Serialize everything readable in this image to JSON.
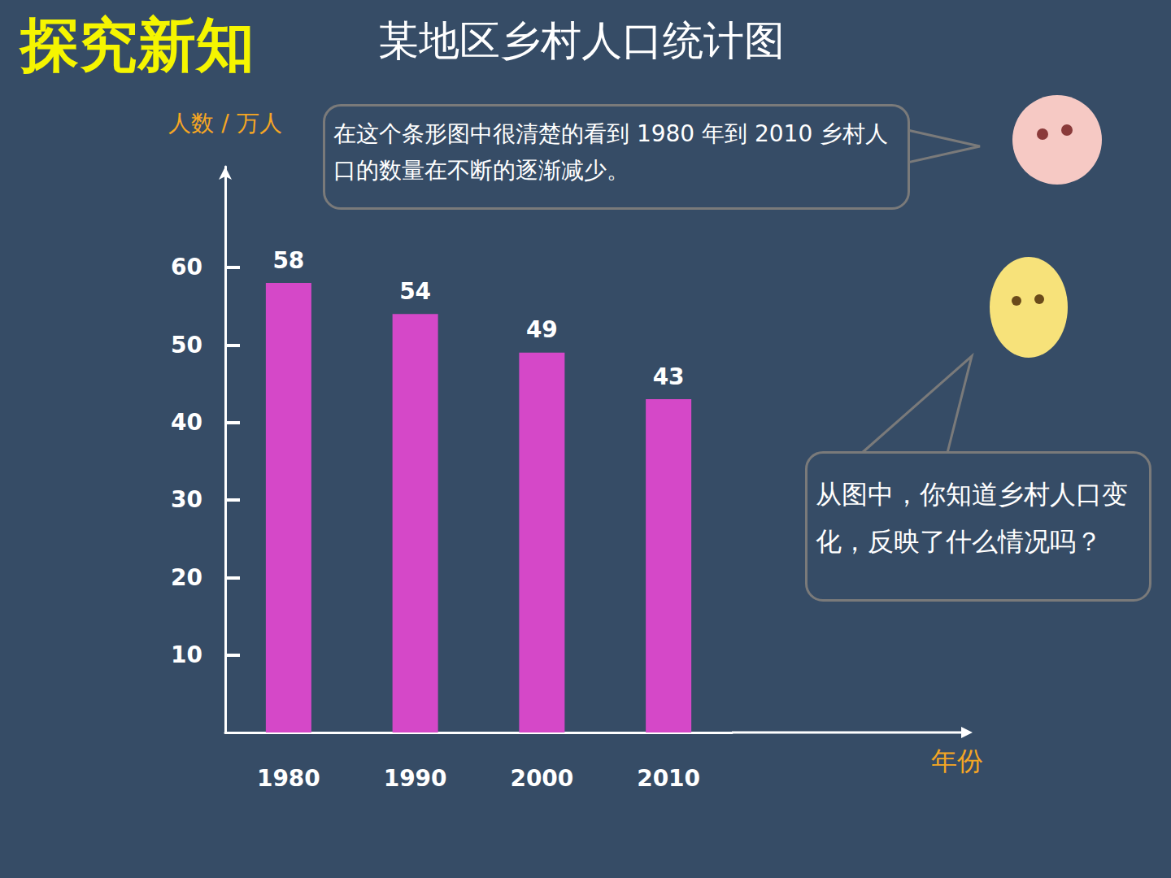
{
  "heading": "探究新知",
  "chart_data": {
    "type": "bar",
    "title": "某地区乡村人口统计图",
    "x_label": "年份",
    "y_label": "人数 / 万人",
    "categories": [
      "1980",
      "1990",
      "2000",
      "2010"
    ],
    "values": [
      58,
      54,
      49,
      43
    ],
    "color": "#d548c8",
    "ylim": [
      0,
      73
    ],
    "yticks": [
      10,
      20,
      30,
      40,
      50,
      60
    ],
    "grid": false,
    "data_labels": true,
    "annotations": [
      "在这个条形图中很清楚的看到 1980 年到 2010 乡村人口的数量在不断的逐渐减少。",
      "从图中，你知道乡村人口变化，反映了什么情况吗？"
    ]
  }
}
